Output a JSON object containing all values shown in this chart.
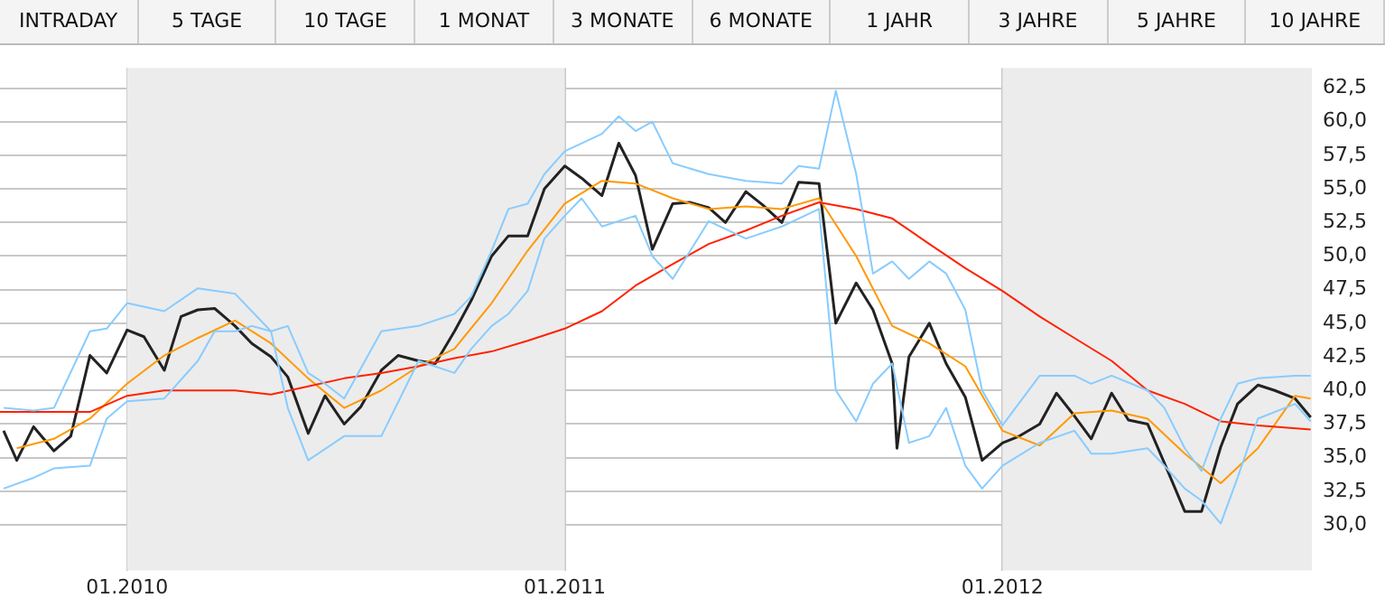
{
  "chart_data": {
    "type": "line",
    "annotations": [
      "INTRADAY",
      "5 TAGE",
      "10 TAGE",
      "1 MONAT",
      "3 MONATE",
      "6 MONATE",
      "1 JAHR",
      "3 JAHRE",
      "5 JAHRE",
      "10 JAHRE"
    ],
    "xlim": [
      "2009-09-17",
      "2012-09-15"
    ],
    "xticks": [
      {
        "value": "2010-01-01",
        "label": "01.2010"
      },
      {
        "value": "2011-01-01",
        "label": "01.2011"
      },
      {
        "value": "2012-01-01",
        "label": "01.2012"
      }
    ],
    "ylim": [
      26.6,
      64
    ],
    "yticks": [
      {
        "value": 30,
        "label": "30,0"
      },
      {
        "value": 32.5,
        "label": "32,5"
      },
      {
        "value": 35,
        "label": "35,0"
      },
      {
        "value": 37.5,
        "label": "37,5"
      },
      {
        "value": 40,
        "label": "40,0"
      },
      {
        "value": 42.5,
        "label": "42,5"
      },
      {
        "value": 45,
        "label": "45,0"
      },
      {
        "value": 47.5,
        "label": "47,5"
      },
      {
        "value": 50,
        "label": "50,0"
      },
      {
        "value": 52.5,
        "label": "52,5"
      },
      {
        "value": 55,
        "label": "55,0"
      },
      {
        "value": 57.5,
        "label": "57,5"
      },
      {
        "value": 60,
        "label": "60,0"
      },
      {
        "value": 62.5,
        "label": "62,5"
      }
    ],
    "grid": true,
    "legend": false,
    "marker": "none",
    "line_style": "solid",
    "bands": [
      {
        "axis": "x",
        "from": "2010-01-01",
        "to": "2011-01-01",
        "color": "#ececec"
      },
      {
        "axis": "x",
        "from": "2012-01-01",
        "to": "2012-09-15",
        "color": "#ececec"
      }
    ],
    "series": [
      {
        "color": "#88ccff",
        "x": [
          "2009-09-20",
          "2009-10-15",
          "2009-11-01",
          "2009-12-01",
          "2009-12-15",
          "2010-01-01",
          "2010-02-01",
          "2010-03-01",
          "2010-04-01",
          "2010-05-01",
          "2010-05-15",
          "2010-06-01",
          "2010-06-15",
          "2010-07-01",
          "2010-08-01",
          "2010-09-01",
          "2010-10-01",
          "2010-10-15",
          "2010-11-01",
          "2010-11-15",
          "2010-12-01",
          "2010-12-15",
          "2011-01-01",
          "2011-02-01",
          "2011-02-15",
          "2011-03-01",
          "2011-03-15",
          "2011-04-01",
          "2011-05-01",
          "2011-06-01",
          "2011-07-01",
          "2011-07-15",
          "2011-08-01",
          "2011-08-15",
          "2011-09-01",
          "2011-09-15",
          "2011-10-01",
          "2011-10-15",
          "2011-11-01",
          "2011-11-15",
          "2011-12-01",
          "2011-12-15",
          "2012-01-01",
          "2012-02-01",
          "2012-03-01",
          "2012-03-15",
          "2012-04-01",
          "2012-05-01",
          "2012-05-15",
          "2012-06-01",
          "2012-06-15",
          "2012-07-01",
          "2012-07-15",
          "2012-08-01",
          "2012-09-01",
          "2012-09-14"
        ],
        "values": [
          38.7,
          38.5,
          38.7,
          44.4,
          44.6,
          46.5,
          45.9,
          47.6,
          47.2,
          44.4,
          44.8,
          41.3,
          40.5,
          39.4,
          44.4,
          44.8,
          45.7,
          47.0,
          50.4,
          53.5,
          53.9,
          56.1,
          57.8,
          59.1,
          60.4,
          59.3,
          60.0,
          56.9,
          56.1,
          55.6,
          55.4,
          56.7,
          56.5,
          62.3,
          56.1,
          48.7,
          49.6,
          48.3,
          49.6,
          48.7,
          46.0,
          40.0,
          37.4,
          41.1,
          41.1,
          40.5,
          41.1,
          40.0,
          38.7,
          35.7,
          34.0,
          37.9,
          40.5,
          40.9,
          41.1,
          41.1
        ]
      },
      {
        "color": "#88ccff",
        "x": [
          "2009-09-20",
          "2009-10-15",
          "2009-11-01",
          "2009-12-01",
          "2009-12-15",
          "2010-01-01",
          "2010-02-01",
          "2010-03-01",
          "2010-03-15",
          "2010-04-01",
          "2010-04-15",
          "2010-05-01",
          "2010-05-15",
          "2010-06-01",
          "2010-07-01",
          "2010-08-01",
          "2010-09-01",
          "2010-10-01",
          "2010-10-15",
          "2010-11-01",
          "2010-11-15",
          "2010-12-01",
          "2010-12-15",
          "2011-01-01",
          "2011-01-15",
          "2011-02-01",
          "2011-03-01",
          "2011-03-15",
          "2011-04-01",
          "2011-05-01",
          "2011-06-01",
          "2011-07-01",
          "2011-08-01",
          "2011-08-15",
          "2011-09-01",
          "2011-09-15",
          "2011-10-01",
          "2011-10-15",
          "2011-11-01",
          "2011-11-15",
          "2011-12-01",
          "2011-12-15",
          "2012-01-01",
          "2012-02-01",
          "2012-03-01",
          "2012-03-15",
          "2012-04-01",
          "2012-05-01",
          "2012-05-15",
          "2012-06-01",
          "2012-06-15",
          "2012-07-01",
          "2012-07-15",
          "2012-08-01",
          "2012-09-01",
          "2012-09-14"
        ],
        "values": [
          32.7,
          33.5,
          34.2,
          34.4,
          37.9,
          39.2,
          39.4,
          42.2,
          44.4,
          44.4,
          44.8,
          44.4,
          38.7,
          34.8,
          36.6,
          36.6,
          42.2,
          41.3,
          43.1,
          44.8,
          45.7,
          47.4,
          51.3,
          53.0,
          54.3,
          52.2,
          53.0,
          50.0,
          48.3,
          52.6,
          51.3,
          52.2,
          53.5,
          40.0,
          37.7,
          40.5,
          42.0,
          36.1,
          36.6,
          38.7,
          34.4,
          32.7,
          34.4,
          36.1,
          37.0,
          35.3,
          35.3,
          35.7,
          34.4,
          32.7,
          31.8,
          30.1,
          33.5,
          37.9,
          39.0,
          37.7
        ]
      },
      {
        "color": "#ff2200",
        "x": [
          "2009-09-17",
          "2009-12-01",
          "2010-01-01",
          "2010-02-01",
          "2010-04-01",
          "2010-05-01",
          "2010-06-01",
          "2010-07-01",
          "2010-08-01",
          "2010-09-01",
          "2010-10-01",
          "2010-11-01",
          "2010-12-01",
          "2011-01-01",
          "2011-02-01",
          "2011-03-01",
          "2011-04-01",
          "2011-05-01",
          "2011-06-01",
          "2011-07-01",
          "2011-08-01",
          "2011-09-01",
          "2011-10-01",
          "2011-11-01",
          "2011-12-01",
          "2012-01-01",
          "2012-02-01",
          "2012-03-01",
          "2012-04-01",
          "2012-05-01",
          "2012-06-01",
          "2012-07-01",
          "2012-08-01",
          "2012-09-14"
        ],
        "values": [
          38.4,
          38.4,
          39.6,
          40.0,
          40.0,
          39.7,
          40.3,
          40.9,
          41.3,
          41.8,
          42.4,
          42.9,
          43.7,
          44.6,
          45.9,
          47.8,
          49.4,
          50.9,
          51.9,
          53.0,
          54.0,
          53.5,
          52.8,
          50.9,
          49.1,
          47.4,
          45.5,
          43.9,
          42.2,
          40.0,
          39.0,
          37.7,
          37.4,
          37.1
        ]
      },
      {
        "color": "#ff9900",
        "x": [
          "2009-10-01",
          "2009-11-01",
          "2009-12-01",
          "2010-01-01",
          "2010-02-01",
          "2010-03-01",
          "2010-04-01",
          "2010-05-01",
          "2010-06-01",
          "2010-07-01",
          "2010-08-01",
          "2010-09-01",
          "2010-10-01",
          "2010-11-01",
          "2010-12-01",
          "2011-01-01",
          "2011-02-01",
          "2011-03-01",
          "2011-04-01",
          "2011-05-01",
          "2011-06-01",
          "2011-07-01",
          "2011-08-01",
          "2011-09-01",
          "2011-10-01",
          "2011-11-01",
          "2011-12-01",
          "2012-01-01",
          "2012-02-01",
          "2012-03-01",
          "2012-04-01",
          "2012-05-01",
          "2012-06-01",
          "2012-07-01",
          "2012-08-01",
          "2012-09-01",
          "2012-09-14"
        ],
        "values": [
          35.7,
          36.4,
          37.9,
          40.5,
          42.6,
          43.9,
          45.2,
          43.5,
          40.9,
          38.7,
          40.0,
          41.8,
          43.1,
          46.5,
          50.4,
          53.9,
          55.6,
          55.4,
          54.3,
          53.5,
          53.7,
          53.5,
          54.3,
          50.0,
          44.8,
          43.5,
          41.8,
          37.0,
          35.9,
          38.3,
          38.5,
          37.9,
          35.3,
          33.1,
          35.7,
          39.6,
          39.4
        ]
      },
      {
        "color": "#222222",
        "x": [
          "2009-09-20",
          "2009-10-01",
          "2009-10-15",
          "2009-11-01",
          "2009-11-15",
          "2009-12-01",
          "2009-12-15",
          "2010-01-01",
          "2010-01-15",
          "2010-02-01",
          "2010-02-15",
          "2010-03-01",
          "2010-03-15",
          "2010-04-01",
          "2010-04-15",
          "2010-05-01",
          "2010-05-15",
          "2010-06-01",
          "2010-06-15",
          "2010-07-01",
          "2010-07-15",
          "2010-08-01",
          "2010-08-15",
          "2010-09-01",
          "2010-09-15",
          "2010-10-01",
          "2010-10-15",
          "2010-11-01",
          "2010-11-15",
          "2010-12-01",
          "2010-12-15",
          "2011-01-01",
          "2011-01-15",
          "2011-02-01",
          "2011-02-15",
          "2011-03-01",
          "2011-03-15",
          "2011-04-01",
          "2011-04-15",
          "2011-05-01",
          "2011-05-15",
          "2011-06-01",
          "2011-06-15",
          "2011-07-01",
          "2011-07-15",
          "2011-08-01",
          "2011-08-15",
          "2011-09-01",
          "2011-09-15",
          "2011-10-01",
          "2011-10-05",
          "2011-10-15",
          "2011-11-01",
          "2011-11-15",
          "2011-12-01",
          "2011-12-15",
          "2012-01-01",
          "2012-01-15",
          "2012-02-01",
          "2012-02-15",
          "2012-03-01",
          "2012-03-15",
          "2012-04-01",
          "2012-04-15",
          "2012-05-01",
          "2012-05-15",
          "2012-06-01",
          "2012-06-15",
          "2012-07-01",
          "2012-07-15",
          "2012-08-01",
          "2012-08-15",
          "2012-09-01",
          "2012-09-14"
        ],
        "values": [
          37.0,
          34.8,
          37.3,
          35.5,
          36.6,
          42.6,
          41.3,
          44.5,
          44.0,
          41.5,
          45.5,
          46.0,
          46.1,
          44.8,
          43.5,
          42.5,
          41.0,
          36.8,
          39.6,
          37.5,
          38.8,
          41.5,
          42.6,
          42.2,
          42.0,
          44.4,
          46.7,
          50.0,
          51.5,
          51.5,
          55.0,
          56.7,
          55.8,
          54.5,
          58.4,
          56.0,
          50.5,
          53.9,
          54.0,
          53.6,
          52.5,
          54.8,
          53.8,
          52.5,
          55.5,
          55.4,
          45.0,
          48.0,
          46.0,
          42.0,
          35.7,
          42.5,
          45.0,
          42.0,
          39.5,
          34.8,
          36.1,
          36.6,
          37.5,
          39.8,
          38.1,
          36.4,
          39.8,
          37.8,
          37.5,
          34.6,
          31.0,
          31.0,
          35.8,
          39.0,
          40.4,
          40.0,
          39.4,
          38.0
        ]
      }
    ]
  }
}
